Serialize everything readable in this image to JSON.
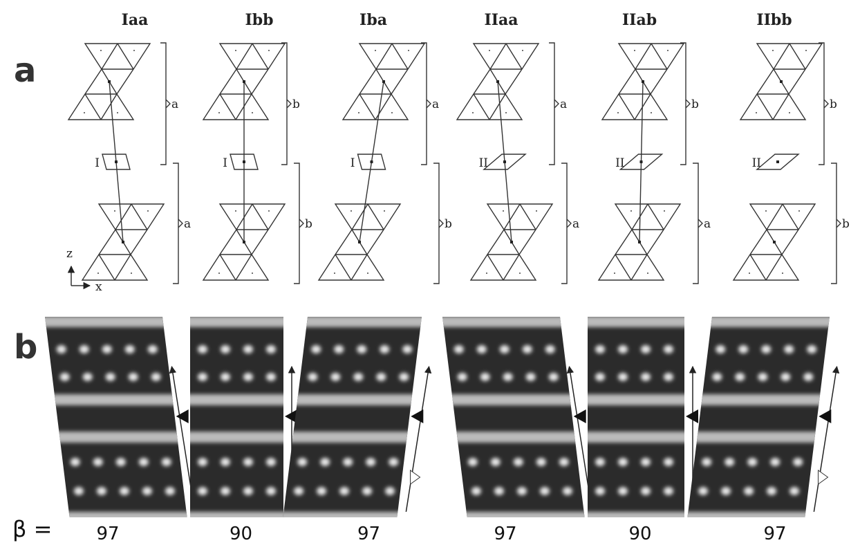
{
  "labels": {
    "panel_a": "a",
    "panel_b": "b",
    "beta": "β ="
  },
  "axes": {
    "z": "z",
    "x": "x"
  },
  "columns": [
    {
      "title": "Iaa",
      "top_bracket": "a",
      "bottom_bracket": "a",
      "interlayer": "I",
      "beta": 97
    },
    {
      "title": "Ibb",
      "top_bracket": "b",
      "bottom_bracket": "b",
      "interlayer": "I",
      "beta": 90
    },
    {
      "title": "Iba",
      "top_bracket": "a",
      "bottom_bracket": "b",
      "interlayer": "I",
      "beta": 97
    },
    {
      "title": "IIaa",
      "top_bracket": "a",
      "bottom_bracket": "a",
      "interlayer": "II",
      "beta": 97
    },
    {
      "title": "IIab",
      "top_bracket": "b",
      "bottom_bracket": "a",
      "interlayer": "II",
      "beta": 90
    },
    {
      "title": "IIbb",
      "top_bracket": "b",
      "bottom_bracket": "b",
      "interlayer": "II",
      "beta": 97
    }
  ]
}
